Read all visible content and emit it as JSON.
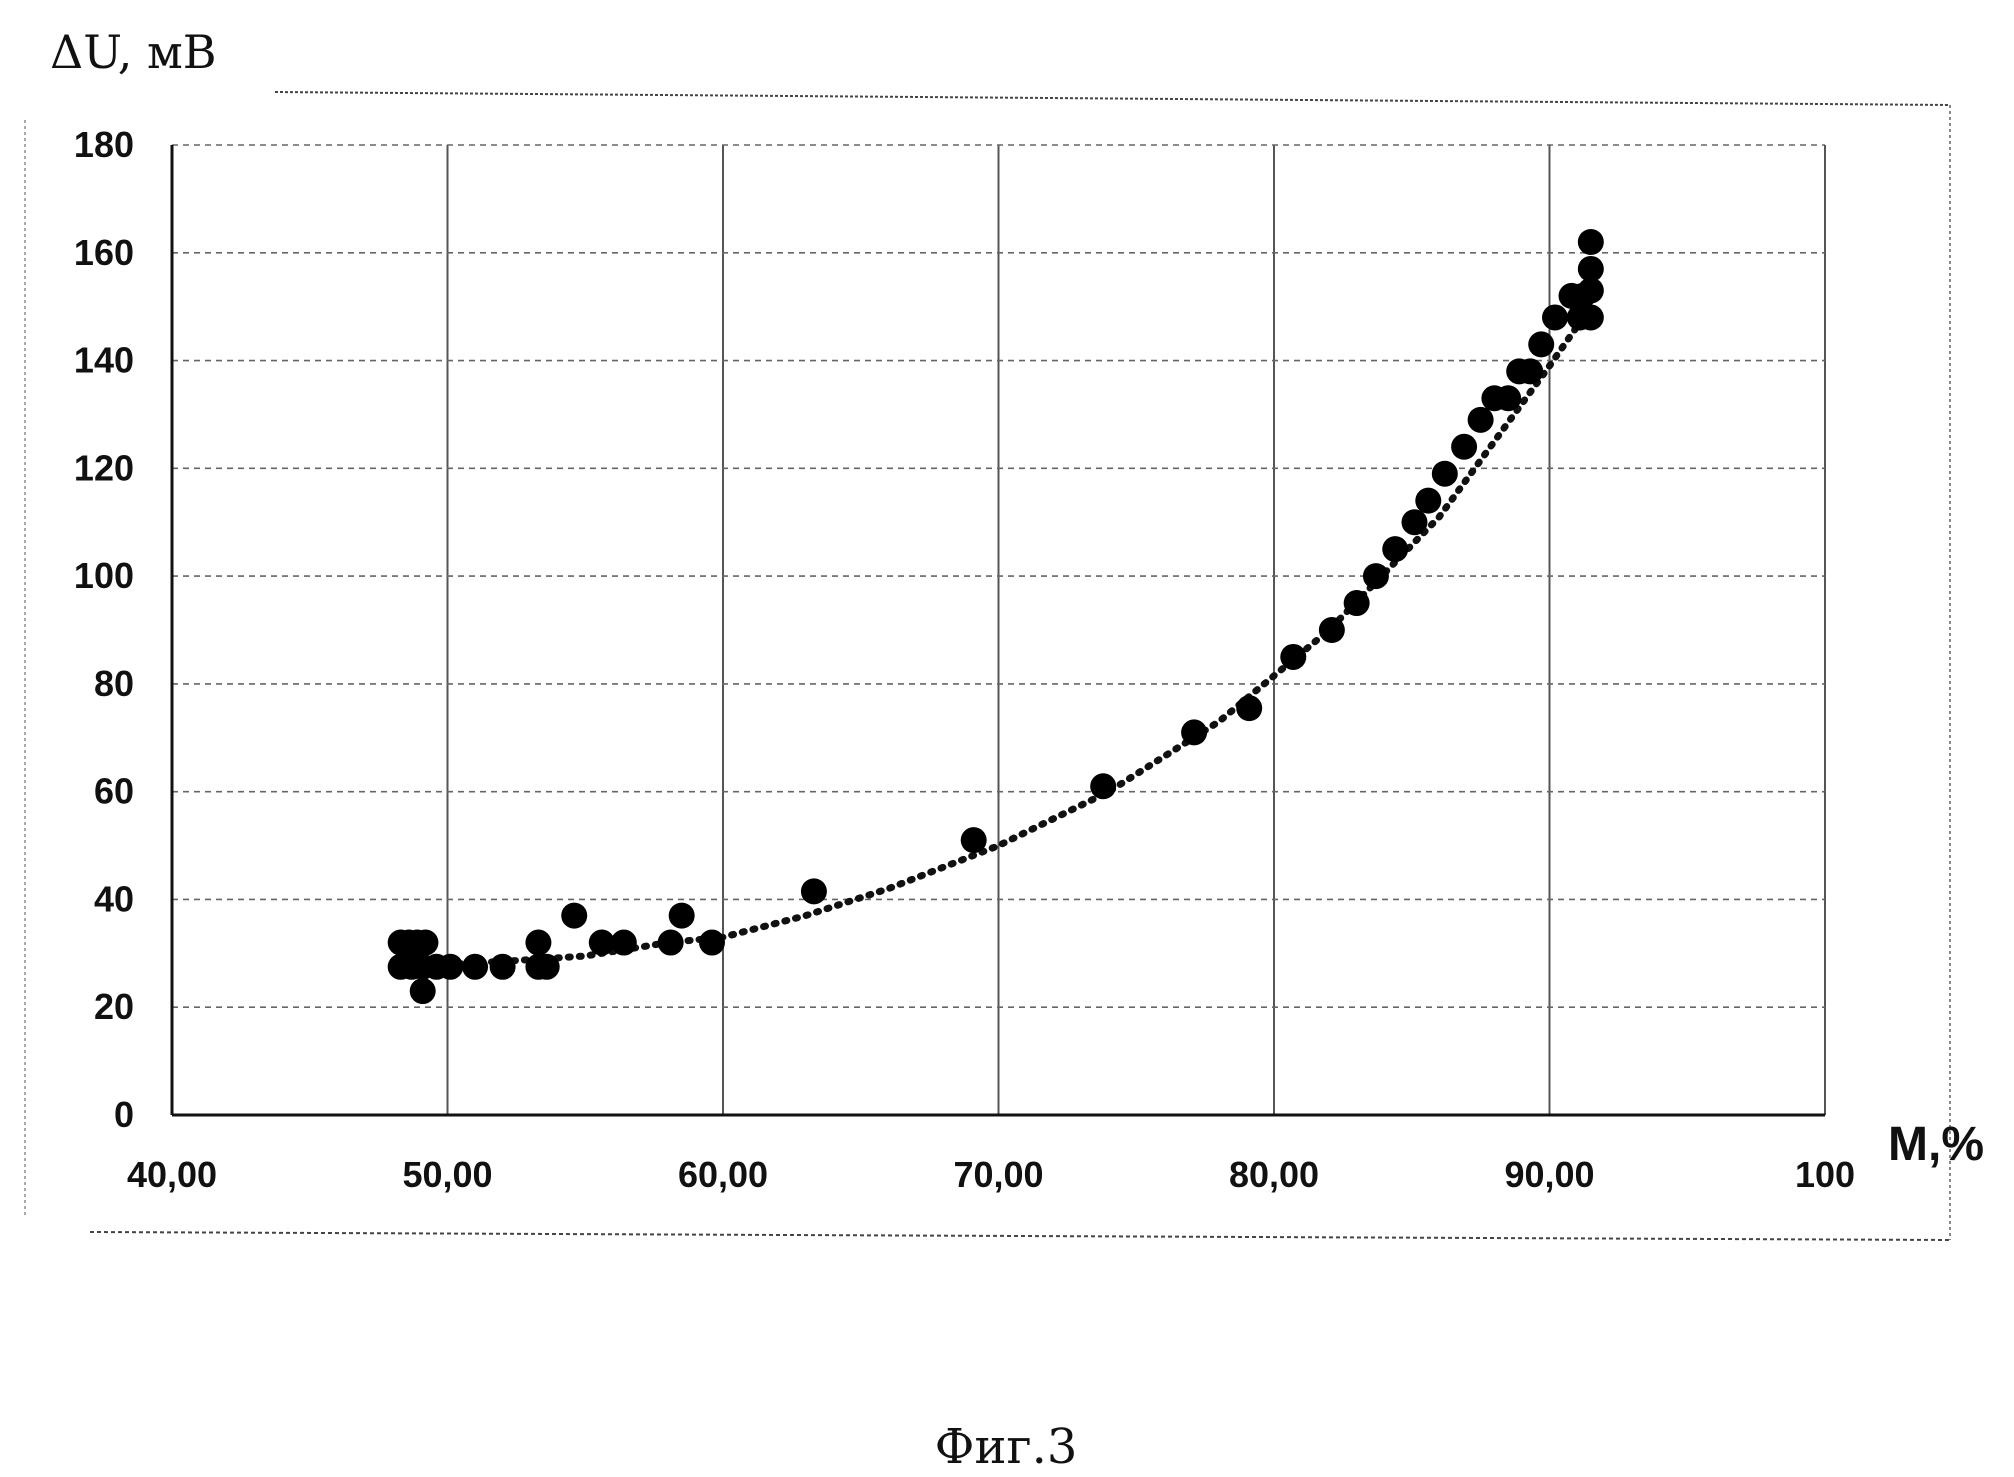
{
  "caption": "Фиг.3",
  "chart_data": {
    "type": "scatter",
    "title": "",
    "ylabel": "ΔU, мВ",
    "xlabel": "M,%",
    "xlim": [
      40,
      100
    ],
    "ylim": [
      0,
      180
    ],
    "x_ticks": [
      40,
      50,
      60,
      70,
      80,
      90,
      100
    ],
    "x_tick_labels": [
      "40,00",
      "50,00",
      "60,00",
      "70,00",
      "80,00",
      "90,00",
      "100"
    ],
    "y_ticks": [
      0,
      20,
      40,
      60,
      80,
      100,
      120,
      140,
      160,
      180
    ],
    "y_tick_labels": [
      "0",
      "20",
      "40",
      "60",
      "80",
      "100",
      "120",
      "140",
      "160",
      "180"
    ],
    "grid": true,
    "legend": "none",
    "points": [
      [
        48.3,
        32
      ],
      [
        48.6,
        32
      ],
      [
        48.9,
        32
      ],
      [
        49.2,
        32
      ],
      [
        48.3,
        27.5
      ],
      [
        48.7,
        27.5
      ],
      [
        49.1,
        27.5
      ],
      [
        49.6,
        27.5
      ],
      [
        50.1,
        27.5
      ],
      [
        51,
        27.5
      ],
      [
        49.1,
        23
      ],
      [
        52,
        27.5
      ],
      [
        53.3,
        27.5
      ],
      [
        53.6,
        27.5
      ],
      [
        53.3,
        32
      ],
      [
        54.6,
        37
      ],
      [
        55.6,
        32
      ],
      [
        56.4,
        32
      ],
      [
        58.1,
        32
      ],
      [
        58.5,
        37
      ],
      [
        59.6,
        32
      ],
      [
        63.3,
        41.5
      ],
      [
        69.1,
        51
      ],
      [
        73.8,
        61
      ],
      [
        77.1,
        71
      ],
      [
        79.1,
        75.5
      ],
      [
        80.7,
        85
      ],
      [
        82.1,
        90
      ],
      [
        83,
        95
      ],
      [
        83.7,
        100
      ],
      [
        84.4,
        105
      ],
      [
        85.1,
        110
      ],
      [
        85.6,
        114
      ],
      [
        86.2,
        119
      ],
      [
        86.9,
        124
      ],
      [
        87.5,
        129
      ],
      [
        88,
        133
      ],
      [
        88.5,
        133
      ],
      [
        88.9,
        138
      ],
      [
        89.3,
        138
      ],
      [
        89.7,
        143
      ],
      [
        90.2,
        148
      ],
      [
        90.8,
        152
      ],
      [
        91.2,
        152
      ],
      [
        91.5,
        157
      ],
      [
        91.5,
        162
      ],
      [
        91.1,
        148
      ],
      [
        91.5,
        148
      ],
      [
        91.5,
        153
      ]
    ],
    "trendline": {
      "style": "dotted",
      "points": [
        [
          50,
          28
        ],
        [
          52,
          28.5
        ],
        [
          55,
          29.5
        ],
        [
          58,
          32
        ],
        [
          60,
          33
        ],
        [
          63,
          37
        ],
        [
          66,
          42
        ],
        [
          70,
          50
        ],
        [
          74,
          60
        ],
        [
          78,
          73
        ],
        [
          82,
          90
        ],
        [
          86,
          111
        ],
        [
          90,
          139
        ],
        [
          91.5,
          150
        ]
      ]
    }
  }
}
